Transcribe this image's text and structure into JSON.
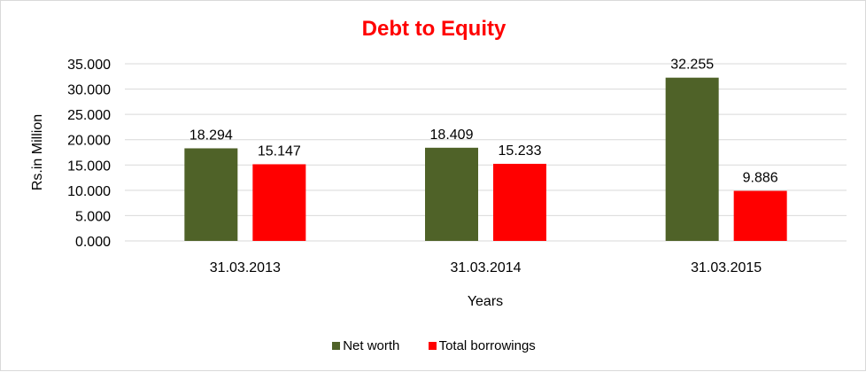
{
  "chart_data": {
    "type": "bar",
    "title": "Debt to Equity",
    "xlabel": "Years",
    "ylabel": "Rs.in Million",
    "categories": [
      "31.03.2013",
      "31.03.2014",
      "31.03.2015"
    ],
    "series": [
      {
        "name": "Net worth",
        "color": "#4f6228",
        "values": [
          18.294,
          18.409,
          32.255
        ],
        "labels": [
          "18.294",
          "18.409",
          "32.255"
        ]
      },
      {
        "name": "Total borrowings",
        "color": "#ff0000",
        "values": [
          15.147,
          15.233,
          9.886
        ],
        "labels": [
          "15.147",
          "15.233",
          "9.886"
        ]
      }
    ],
    "ylim": [
      0,
      35
    ],
    "yticks": [
      "0.000",
      "5.000",
      "10.000",
      "15.000",
      "20.000",
      "25.000",
      "30.000",
      "35.000"
    ],
    "grid": true,
    "legend": "bottom",
    "title_color": "#ff0000"
  }
}
